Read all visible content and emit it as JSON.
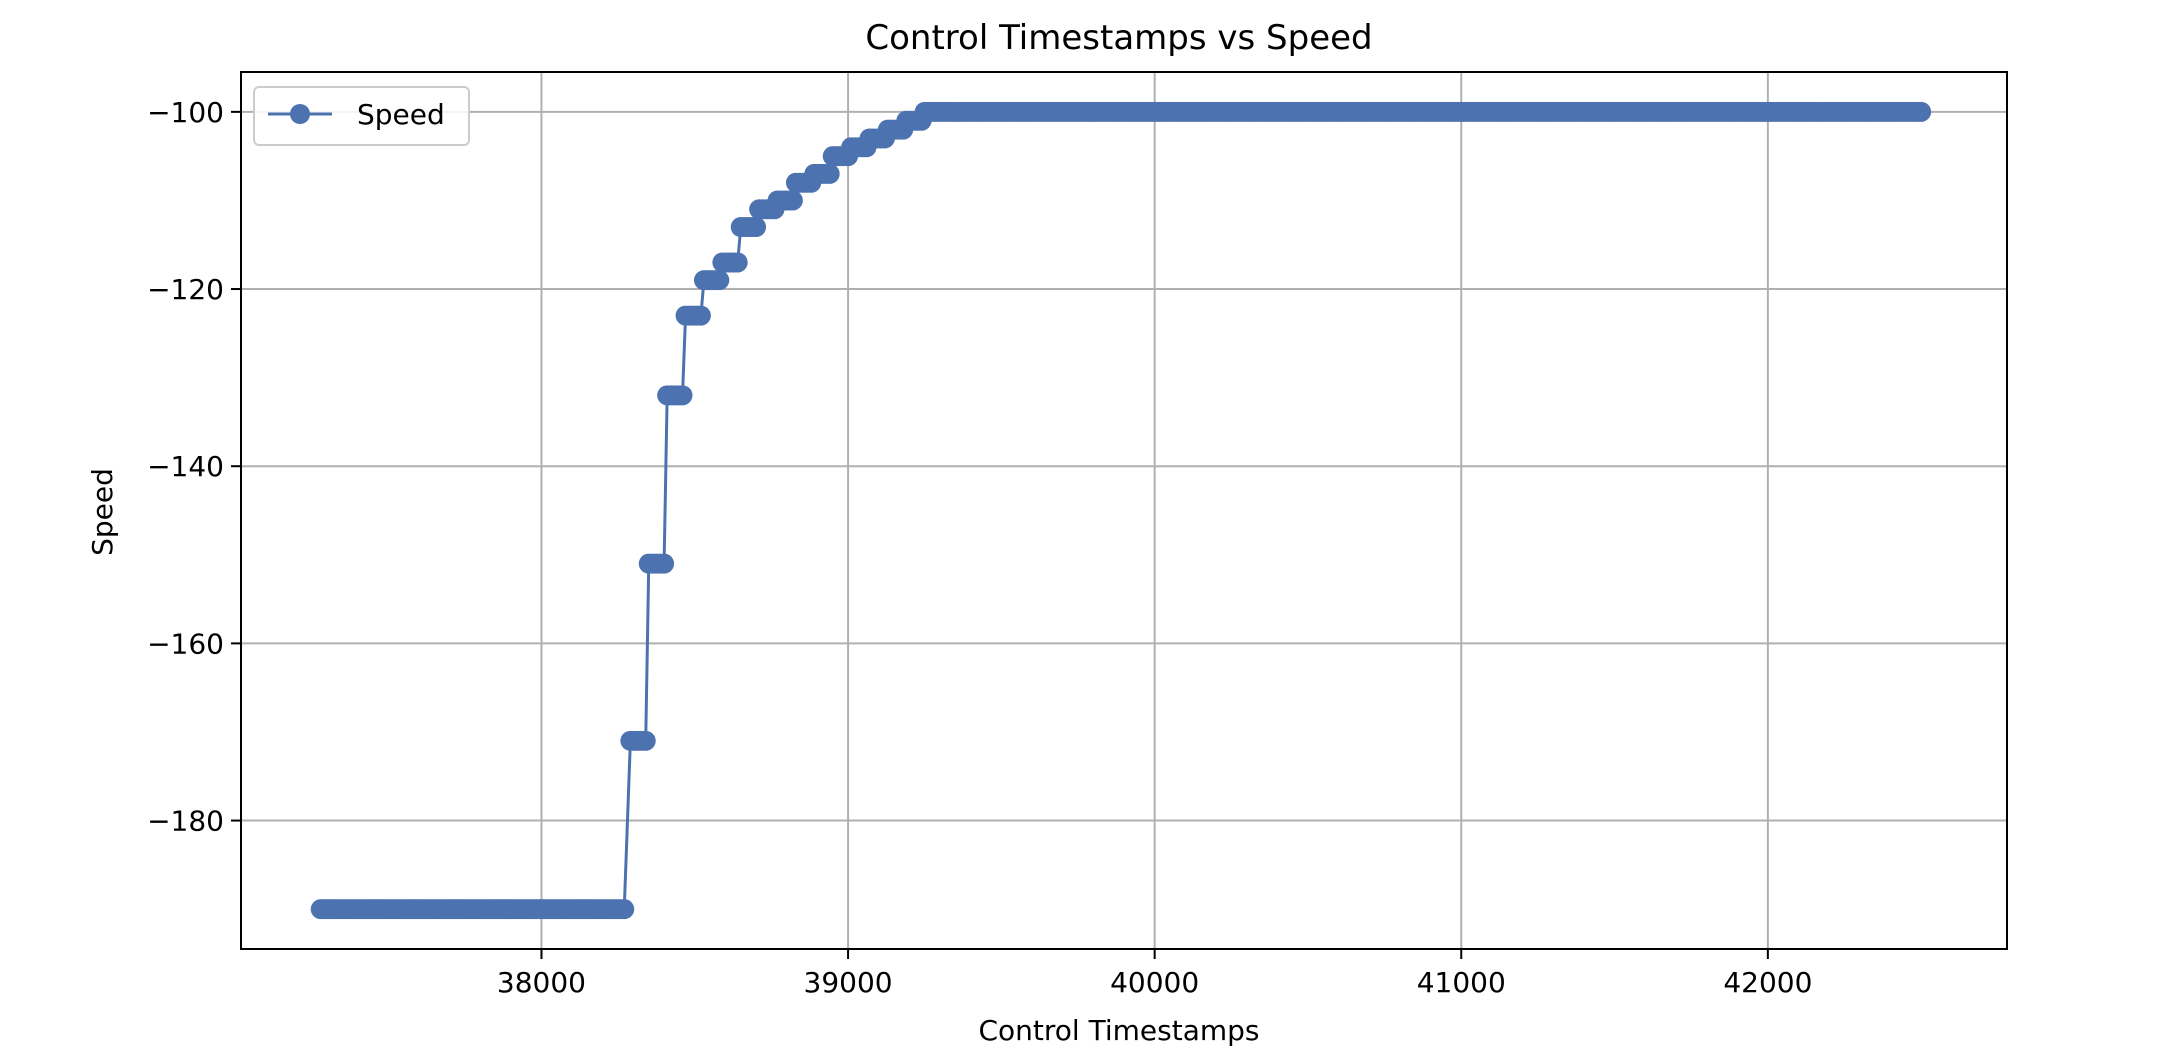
{
  "chart_data": {
    "type": "line",
    "title": "Control Timestamps vs Speed",
    "xlabel": "Control Timestamps",
    "ylabel": "Speed",
    "xlim": [
      37020,
      42780
    ],
    "ylim": [
      -194.5,
      -95.5
    ],
    "xticks": [
      38000,
      39000,
      40000,
      41000,
      42000
    ],
    "xtick_labels": [
      "38000",
      "39000",
      "40000",
      "41000",
      "42000"
    ],
    "yticks": [
      -180,
      -160,
      -140,
      -120,
      -100
    ],
    "ytick_labels": [
      "−180",
      "−160",
      "−140",
      "−120",
      "−100"
    ],
    "grid": true,
    "legend_position": "upper-left",
    "marker": "circle",
    "series": [
      {
        "name": "Speed",
        "color": "#4c72b0",
        "points": [
          [
            37280,
            -190
          ],
          [
            38270,
            -190
          ],
          [
            38290,
            -171
          ],
          [
            38340,
            -171
          ],
          [
            38350,
            -151
          ],
          [
            38400,
            -151
          ],
          [
            38410,
            -132
          ],
          [
            38460,
            -132
          ],
          [
            38470,
            -123
          ],
          [
            38520,
            -123
          ],
          [
            38530,
            -119
          ],
          [
            38580,
            -119
          ],
          [
            38590,
            -117
          ],
          [
            38640,
            -117
          ],
          [
            38650,
            -113
          ],
          [
            38700,
            -113
          ],
          [
            38710,
            -111
          ],
          [
            38760,
            -111
          ],
          [
            38770,
            -110
          ],
          [
            38820,
            -110
          ],
          [
            38830,
            -108
          ],
          [
            38880,
            -108
          ],
          [
            38890,
            -107
          ],
          [
            38940,
            -107
          ],
          [
            38950,
            -105
          ],
          [
            39000,
            -105
          ],
          [
            39010,
            -104
          ],
          [
            39060,
            -104
          ],
          [
            39070,
            -103
          ],
          [
            39120,
            -103
          ],
          [
            39130,
            -102
          ],
          [
            39180,
            -102
          ],
          [
            39190,
            -101
          ],
          [
            39240,
            -101
          ],
          [
            39250,
            -100
          ],
          [
            42500,
            -100
          ]
        ]
      }
    ]
  }
}
